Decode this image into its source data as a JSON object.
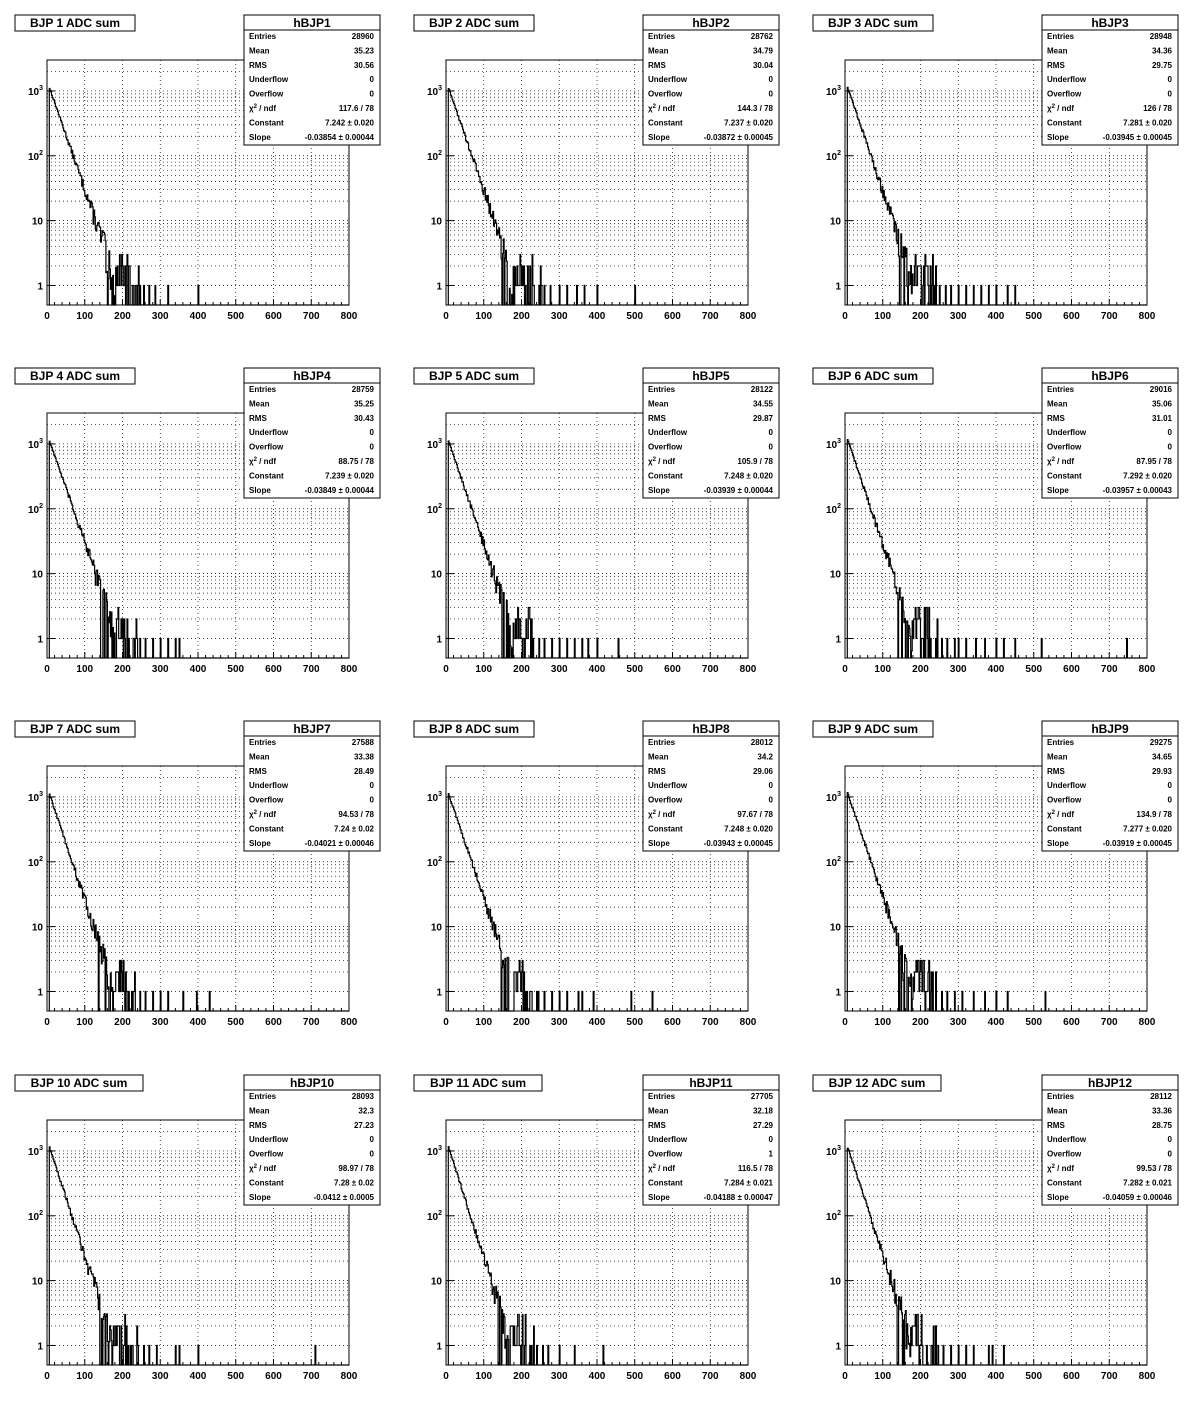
{
  "stat_labels": {
    "entries": "Entries",
    "mean": "Mean",
    "rms": "RMS",
    "underflow": "Underflow",
    "overflow": "Overflow",
    "chi2_sym": "χ",
    "chi2_sup": "2",
    "chi2_rest": " / ndf",
    "constant": "Constant",
    "slope": "Slope",
    "pm": "±"
  },
  "y_ticks": [
    {
      "value": 1,
      "label": "1"
    },
    {
      "value": 10,
      "label": "10"
    },
    {
      "value": 100,
      "base": "10",
      "exp": "2"
    },
    {
      "value": 1000,
      "base": "10",
      "exp": "3"
    }
  ],
  "x_ticks": [
    "0",
    "100",
    "200",
    "300",
    "400",
    "500",
    "600",
    "700",
    "800"
  ],
  "chart_data": [
    {
      "type": "histogram",
      "title": "BJP 1 ADC sum",
      "stats_name": "hBJP1",
      "xlim": [
        0,
        800
      ],
      "ylim": [
        0.5,
        3000
      ],
      "y_scale": "log",
      "grid": true,
      "stats": {
        "entries": "28960",
        "mean": "35.23",
        "rms": "30.56",
        "underflow": "0",
        "overflow": "0",
        "chi2": "117.6 / 78",
        "constant": "7.242",
        "constant_err": "0.020",
        "slope": "-0.03854",
        "slope_err": "0.00044"
      },
      "fit": {
        "constant": 7.242,
        "slope": -0.03854
      },
      "tail_x": [
        210,
        225,
        240,
        255,
        270,
        285,
        320,
        400
      ]
    },
    {
      "type": "histogram",
      "title": "BJP 2 ADC sum",
      "stats_name": "hBJP2",
      "xlim": [
        0,
        800
      ],
      "ylim": [
        0.5,
        3000
      ],
      "y_scale": "log",
      "grid": true,
      "stats": {
        "entries": "28762",
        "mean": "34.79",
        "rms": "30.04",
        "underflow": "0",
        "overflow": "0",
        "chi2": "144.3 / 78",
        "constant": "7.237",
        "constant_err": "0.020",
        "slope": "-0.03872",
        "slope_err": "0.00045"
      },
      "fit": {
        "constant": 7.237,
        "slope": -0.03872
      },
      "tail_x": [
        200,
        215,
        230,
        245,
        260,
        275,
        300,
        320,
        345,
        365,
        400,
        500
      ]
    },
    {
      "type": "histogram",
      "title": "BJP 3 ADC sum",
      "stats_name": "hBJP3",
      "xlim": [
        0,
        800
      ],
      "ylim": [
        0.5,
        3000
      ],
      "y_scale": "log",
      "grid": true,
      "stats": {
        "entries": "28948",
        "mean": "34.36",
        "rms": "29.75",
        "underflow": "0",
        "overflow": "0",
        "chi2": "126 / 78",
        "constant": "7.281",
        "constant_err": "0.020",
        "slope": "-0.03945",
        "slope_err": "0.00045"
      },
      "fit": {
        "constant": 7.281,
        "slope": -0.03945
      },
      "tail_x": [
        205,
        220,
        235,
        250,
        265,
        280,
        300,
        320,
        340,
        360,
        380,
        400,
        430,
        450
      ]
    },
    {
      "type": "histogram",
      "title": "BJP 4 ADC sum",
      "stats_name": "hBJP4",
      "xlim": [
        0,
        800
      ],
      "ylim": [
        0.5,
        3000
      ],
      "y_scale": "log",
      "grid": true,
      "stats": {
        "entries": "28759",
        "mean": "35.25",
        "rms": "30.43",
        "underflow": "0",
        "overflow": "0",
        "chi2": "88.75 / 78",
        "constant": "7.239",
        "constant_err": "0.020",
        "slope": "-0.03849",
        "slope_err": "0.00044"
      },
      "fit": {
        "constant": 7.239,
        "slope": -0.03849
      },
      "tail_x": [
        200,
        215,
        230,
        245,
        260,
        280,
        300,
        320,
        340,
        350
      ]
    },
    {
      "type": "histogram",
      "title": "BJP 5 ADC sum",
      "stats_name": "hBJP5",
      "xlim": [
        0,
        800
      ],
      "ylim": [
        0.5,
        3000
      ],
      "y_scale": "log",
      "grid": true,
      "stats": {
        "entries": "28122",
        "mean": "34.55",
        "rms": "29.87",
        "underflow": "0",
        "overflow": "0",
        "chi2": "105.9 / 78",
        "constant": "7.248",
        "constant_err": "0.020",
        "slope": "-0.03939",
        "slope_err": "0.00044"
      },
      "fit": {
        "constant": 7.248,
        "slope": -0.03939
      },
      "tail_x": [
        200,
        215,
        230,
        245,
        260,
        280,
        300,
        320,
        340,
        360,
        375,
        400,
        455
      ]
    },
    {
      "type": "histogram",
      "title": "BJP 6 ADC sum",
      "stats_name": "hBJP6",
      "xlim": [
        0,
        800
      ],
      "ylim": [
        0.5,
        3000
      ],
      "y_scale": "log",
      "grid": true,
      "stats": {
        "entries": "29016",
        "mean": "35.06",
        "rms": "31.01",
        "underflow": "0",
        "overflow": "0",
        "chi2": "87.95 / 78",
        "constant": "7.292",
        "constant_err": "0.020",
        "slope": "-0.03957",
        "slope_err": "0.00043"
      },
      "fit": {
        "constant": 7.292,
        "slope": -0.03957
      },
      "tail_x": [
        210,
        225,
        240,
        255,
        270,
        290,
        300,
        320,
        345,
        370,
        400,
        420,
        450,
        520,
        745
      ]
    },
    {
      "type": "histogram",
      "title": "BJP 7 ADC sum",
      "stats_name": "hBJP7",
      "xlim": [
        0,
        800
      ],
      "ylim": [
        0.5,
        3000
      ],
      "y_scale": "log",
      "grid": true,
      "stats": {
        "entries": "27588",
        "mean": "33.38",
        "rms": "28.49",
        "underflow": "0",
        "overflow": "0",
        "chi2": "94.53 / 78",
        "constant": "7.24",
        "constant_err": "0.02",
        "slope": "-0.04021",
        "slope_err": "0.00046"
      },
      "fit": {
        "constant": 7.24,
        "slope": -0.04021
      },
      "tail_x": [
        200,
        215,
        230,
        245,
        260,
        280,
        300,
        320,
        360,
        395,
        430
      ]
    },
    {
      "type": "histogram",
      "title": "BJP 8 ADC sum",
      "stats_name": "hBJP8",
      "xlim": [
        0,
        800
      ],
      "ylim": [
        0.5,
        3000
      ],
      "y_scale": "log",
      "grid": true,
      "stats": {
        "entries": "28012",
        "mean": "34.2",
        "rms": "29.06",
        "underflow": "0",
        "overflow": "0",
        "chi2": "97.67 / 78",
        "constant": "7.248",
        "constant_err": "0.020",
        "slope": "-0.03943",
        "slope_err": "0.00045"
      },
      "fit": {
        "constant": 7.248,
        "slope": -0.03943
      },
      "tail_x": [
        195,
        210,
        225,
        240,
        260,
        280,
        300,
        320,
        350,
        360,
        390,
        490,
        545
      ]
    },
    {
      "type": "histogram",
      "title": "BJP 9 ADC sum",
      "stats_name": "hBJP9",
      "xlim": [
        0,
        800
      ],
      "ylim": [
        0.5,
        3000
      ],
      "y_scale": "log",
      "grid": true,
      "stats": {
        "entries": "29275",
        "mean": "34.65",
        "rms": "29.93",
        "underflow": "0",
        "overflow": "0",
        "chi2": "134.9 / 78",
        "constant": "7.277",
        "constant_err": "0.020",
        "slope": "-0.03919",
        "slope_err": "0.00045"
      },
      "fit": {
        "constant": 7.277,
        "slope": -0.03919
      },
      "tail_x": [
        210,
        225,
        240,
        255,
        270,
        290,
        310,
        340,
        370,
        400,
        430,
        530
      ]
    },
    {
      "type": "histogram",
      "title": "BJP 10 ADC sum",
      "stats_name": "hBJP10",
      "xlim": [
        0,
        800
      ],
      "ylim": [
        0.5,
        3000
      ],
      "y_scale": "log",
      "grid": true,
      "stats": {
        "entries": "28093",
        "mean": "32.3",
        "rms": "27.23",
        "underflow": "0",
        "overflow": "0",
        "chi2": "98.97 / 78",
        "constant": "7.28",
        "constant_err": "0.02",
        "slope": "-0.0412",
        "slope_err": "0.0005"
      },
      "fit": {
        "constant": 7.28,
        "slope": -0.0412
      },
      "tail_x": [
        195,
        210,
        225,
        240,
        255,
        270,
        290,
        340,
        350,
        400,
        710
      ]
    },
    {
      "type": "histogram",
      "title": "BJP 11 ADC sum",
      "stats_name": "hBJP11",
      "xlim": [
        0,
        800
      ],
      "ylim": [
        0.5,
        3000
      ],
      "y_scale": "log",
      "grid": true,
      "stats": {
        "entries": "27705",
        "mean": "32.18",
        "rms": "27.29",
        "underflow": "0",
        "overflow": "1",
        "chi2": "116.5 / 78",
        "constant": "7.284",
        "constant_err": "0.021",
        "slope": "-0.04188",
        "slope_err": "0.00047"
      },
      "fit": {
        "constant": 7.284,
        "slope": -0.04188
      },
      "tail_x": [
        195,
        210,
        225,
        240,
        255,
        270,
        300,
        340,
        415
      ]
    },
    {
      "type": "histogram",
      "title": "BJP 12 ADC sum",
      "stats_name": "hBJP12",
      "xlim": [
        0,
        800
      ],
      "ylim": [
        0.5,
        3000
      ],
      "y_scale": "log",
      "grid": true,
      "stats": {
        "entries": "28112",
        "mean": "33.36",
        "rms": "28.75",
        "underflow": "0",
        "overflow": "0",
        "chi2": "99.53 / 78",
        "constant": "7.282",
        "constant_err": "0.021",
        "slope": "-0.04059",
        "slope_err": "0.00046"
      },
      "fit": {
        "constant": 7.282,
        "slope": -0.04059
      },
      "tail_x": [
        200,
        215,
        230,
        245,
        260,
        280,
        300,
        320,
        340,
        380,
        390,
        420
      ]
    }
  ]
}
